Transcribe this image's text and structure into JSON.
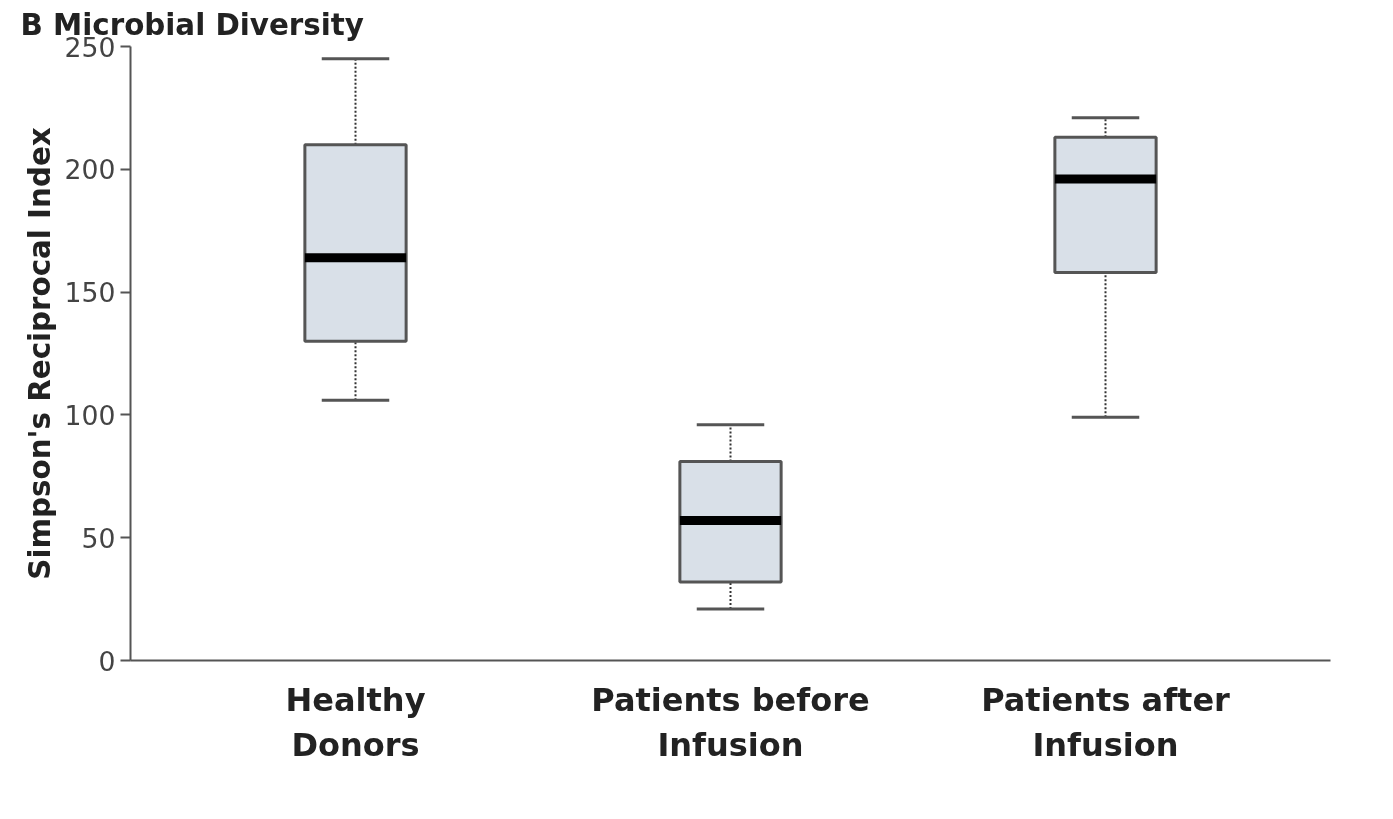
{
  "chart_data": {
    "type": "box",
    "title": "Microbial Diversity",
    "annotations": [
      "B"
    ],
    "ylabel": "Simpson's Reciprocal Index",
    "categories": [
      "Healthy Donors",
      "Patients before Infusion",
      "Patients after Infusion"
    ],
    "boxes": [
      {
        "low": 106,
        "q1": 130,
        "median": 164,
        "q3": 210,
        "high": 245
      },
      {
        "low": 21,
        "q1": 32,
        "median": 57,
        "q3": 81,
        "high": 96
      },
      {
        "low": 99,
        "q1": 158,
        "median": 196,
        "q3": 213,
        "high": 221
      }
    ],
    "color": "#d9e0e8",
    "ylim": [
      0,
      250
    ],
    "yticks": [
      0,
      50,
      100,
      150,
      200,
      250
    ],
    "grid": false
  }
}
